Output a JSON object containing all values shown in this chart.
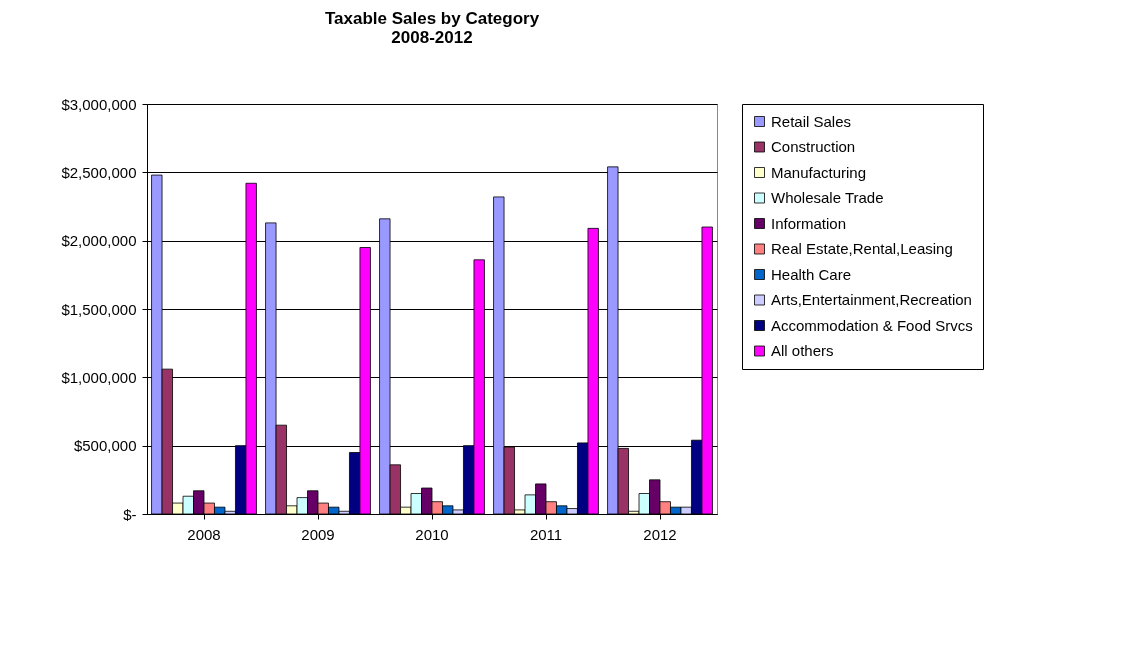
{
  "chart_data": {
    "type": "bar",
    "title": "Taxable Sales by Category\n2008-2012",
    "categories": [
      "2008",
      "2009",
      "2010",
      "2011",
      "2012"
    ],
    "series": [
      {
        "name": "Retail Sales",
        "color": "#9999ff",
        "values": [
          2480000,
          2130000,
          2160000,
          2320000,
          2540000
        ]
      },
      {
        "name": "Construction",
        "color": "#993366",
        "values": [
          1060000,
          650000,
          360000,
          490000,
          480000
        ]
      },
      {
        "name": "Manufacturing",
        "color": "#ffffcc",
        "values": [
          80000,
          60000,
          50000,
          30000,
          20000
        ]
      },
      {
        "name": "Wholesale Trade",
        "color": "#ccffff",
        "values": [
          130000,
          120000,
          150000,
          140000,
          150000
        ]
      },
      {
        "name": "Information",
        "color": "#660066",
        "values": [
          170000,
          170000,
          190000,
          220000,
          250000
        ]
      },
      {
        "name": "Real Estate,Rental,Leasing",
        "color": "#ff8080",
        "values": [
          80000,
          80000,
          90000,
          90000,
          90000
        ]
      },
      {
        "name": "Health Care",
        "color": "#0066cc",
        "values": [
          50000,
          50000,
          60000,
          60000,
          50000
        ]
      },
      {
        "name": "Arts,Entertainment,Recreation",
        "color": "#ccccff",
        "values": [
          20000,
          20000,
          30000,
          40000,
          50000
        ]
      },
      {
        "name": "Accommodation & Food Srvcs",
        "color": "#000080",
        "values": [
          500000,
          450000,
          500000,
          520000,
          540000
        ]
      },
      {
        "name": "All others",
        "color": "#ff00ff",
        "values": [
          2420000,
          1950000,
          1860000,
          2090000,
          2100000
        ]
      }
    ],
    "ylim": [
      0,
      3000000
    ],
    "yticks": [
      {
        "value": 0,
        "label": "$-"
      },
      {
        "value": 500000,
        "label": "$500,000"
      },
      {
        "value": 1000000,
        "label": "$1,000,000"
      },
      {
        "value": 1500000,
        "label": "$1,500,000"
      },
      {
        "value": 2000000,
        "label": "$2,000,000"
      },
      {
        "value": 2500000,
        "label": "$2,500,000"
      },
      {
        "value": 3000000,
        "label": "$3,000,000"
      }
    ],
    "grid": "y",
    "legend": "right"
  }
}
